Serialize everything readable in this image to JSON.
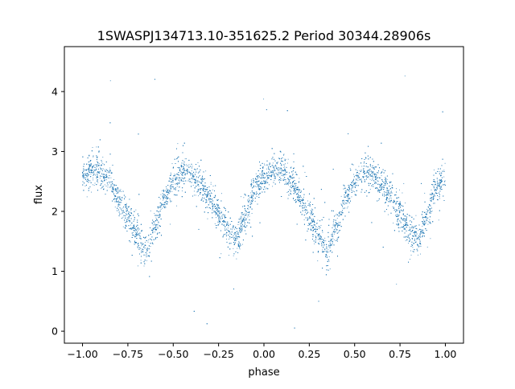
{
  "chart_data": {
    "type": "scatter",
    "title": "1SWASPJ134713.10-351625.2 Period 30344.28906s",
    "xlabel": "phase",
    "ylabel": "flux",
    "xlim": [
      -1.1,
      1.1
    ],
    "ylim": [
      -0.2,
      4.75
    ],
    "x_ticks": [
      -1.0,
      -0.75,
      -0.5,
      -0.25,
      0.0,
      0.25,
      0.5,
      0.75,
      1.0
    ],
    "x_tick_labels": [
      "−1.00",
      "−0.75",
      "−0.50",
      "−0.25",
      "0.00",
      "0.25",
      "0.50",
      "0.75",
      "1.00"
    ],
    "y_ticks": [
      0,
      1,
      2,
      3,
      4
    ],
    "y_tick_labels": [
      "0",
      "1",
      "2",
      "3",
      "4"
    ],
    "marker_color": "#1f77b4",
    "grid": false,
    "legend": "none",
    "phase_range": [
      -1.0,
      1.0
    ],
    "light_curve_profile": {
      "description_points": [
        {
          "phase": -1.0,
          "flux": 2.55
        },
        {
          "phase": -0.95,
          "flux": 2.7
        },
        {
          "phase": -0.9,
          "flux": 2.68
        },
        {
          "phase": -0.85,
          "flux": 2.5
        },
        {
          "phase": -0.8,
          "flux": 2.2
        },
        {
          "phase": -0.75,
          "flux": 1.9
        },
        {
          "phase": -0.7,
          "flux": 1.6
        },
        {
          "phase": -0.65,
          "flux": 1.35
        },
        {
          "phase": -0.6,
          "flux": 1.75
        },
        {
          "phase": -0.55,
          "flux": 2.2
        },
        {
          "phase": -0.5,
          "flux": 2.5
        },
        {
          "phase": -0.45,
          "flux": 2.65
        },
        {
          "phase": -0.4,
          "flux": 2.62
        },
        {
          "phase": -0.35,
          "flux": 2.45
        },
        {
          "phase": -0.3,
          "flux": 2.2
        },
        {
          "phase": -0.25,
          "flux": 1.95
        },
        {
          "phase": -0.2,
          "flux": 1.7
        },
        {
          "phase": -0.15,
          "flux": 1.55
        },
        {
          "phase": -0.1,
          "flux": 1.95
        },
        {
          "phase": -0.05,
          "flux": 2.4
        },
        {
          "phase": 0.0,
          "flux": 2.55
        },
        {
          "phase": 0.05,
          "flux": 2.7
        },
        {
          "phase": 0.1,
          "flux": 2.68
        },
        {
          "phase": 0.15,
          "flux": 2.5
        },
        {
          "phase": 0.2,
          "flux": 2.2
        },
        {
          "phase": 0.25,
          "flux": 1.9
        },
        {
          "phase": 0.3,
          "flux": 1.6
        },
        {
          "phase": 0.35,
          "flux": 1.35
        },
        {
          "phase": 0.4,
          "flux": 1.75
        },
        {
          "phase": 0.45,
          "flux": 2.2
        },
        {
          "phase": 0.5,
          "flux": 2.5
        },
        {
          "phase": 0.55,
          "flux": 2.65
        },
        {
          "phase": 0.6,
          "flux": 2.62
        },
        {
          "phase": 0.65,
          "flux": 2.45
        },
        {
          "phase": 0.7,
          "flux": 2.2
        },
        {
          "phase": 0.75,
          "flux": 1.95
        },
        {
          "phase": 0.8,
          "flux": 1.7
        },
        {
          "phase": 0.85,
          "flux": 1.55
        },
        {
          "phase": 0.9,
          "flux": 1.95
        },
        {
          "phase": 0.95,
          "flux": 2.4
        },
        {
          "phase": 1.0,
          "flux": 2.55
        }
      ],
      "scatter_sigma": 0.13,
      "outlier_range": [
        0.0,
        4.5
      ]
    }
  }
}
